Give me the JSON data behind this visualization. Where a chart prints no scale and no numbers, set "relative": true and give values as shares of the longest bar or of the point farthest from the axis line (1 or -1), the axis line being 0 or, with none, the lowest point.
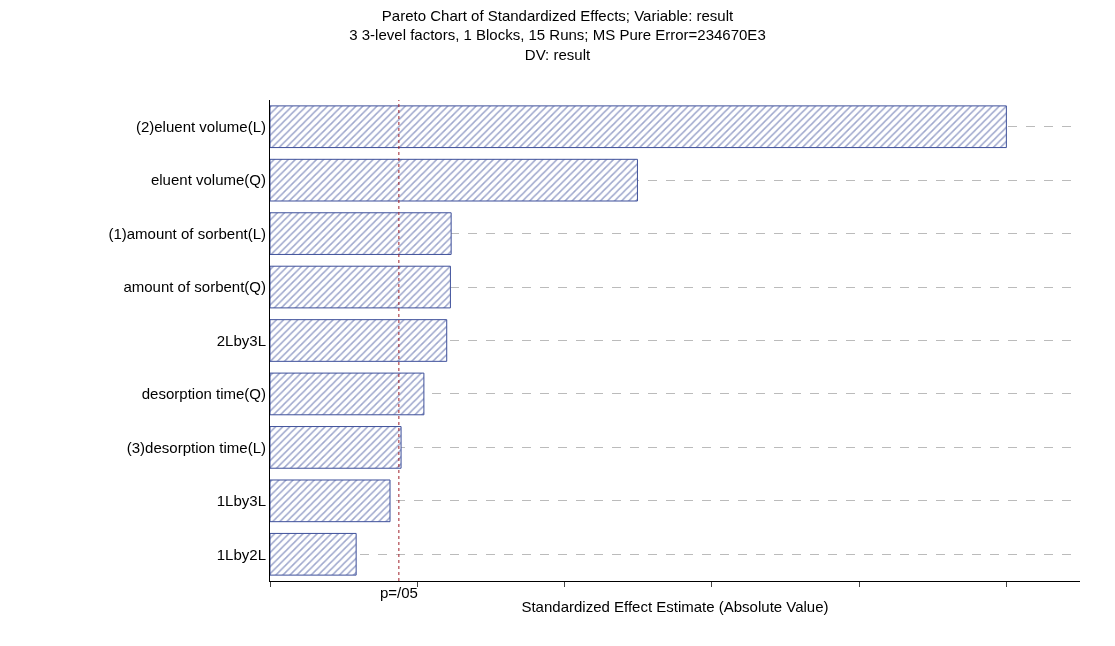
{
  "chart_data": {
    "type": "bar",
    "orientation": "horizontal",
    "relative": true,
    "title": "Pareto Chart of Standardized Effects; Variable: result\n3 3-level factors, 1 Blocks, 15 Runs; MS Pure Error=234670E3\nDV: result",
    "xlabel": "Standardized Effect Estimate (Absolute Value)",
    "categories": [
      "(2)eluent volume(L)",
      "eluent volume(Q)",
      "(1)amount of sorbent(L)",
      "amount of sorbent(Q)",
      "2Lby3L",
      "desorption time(Q)",
      "(3)desorption time(L)",
      "1Lby3L",
      "1Lby2L"
    ],
    "values": [
      1,
      0.499,
      0.246,
      0.245,
      0.24,
      0.209,
      0.178,
      0.163,
      0.117
    ],
    "color": "#3d4f9a",
    "ref_lines": [
      {
        "axis": "x",
        "value": 0.175,
        "label": "p=/05",
        "color": "#a0202a",
        "line_style": "dotted"
      }
    ],
    "grid": "y",
    "legend": false
  }
}
